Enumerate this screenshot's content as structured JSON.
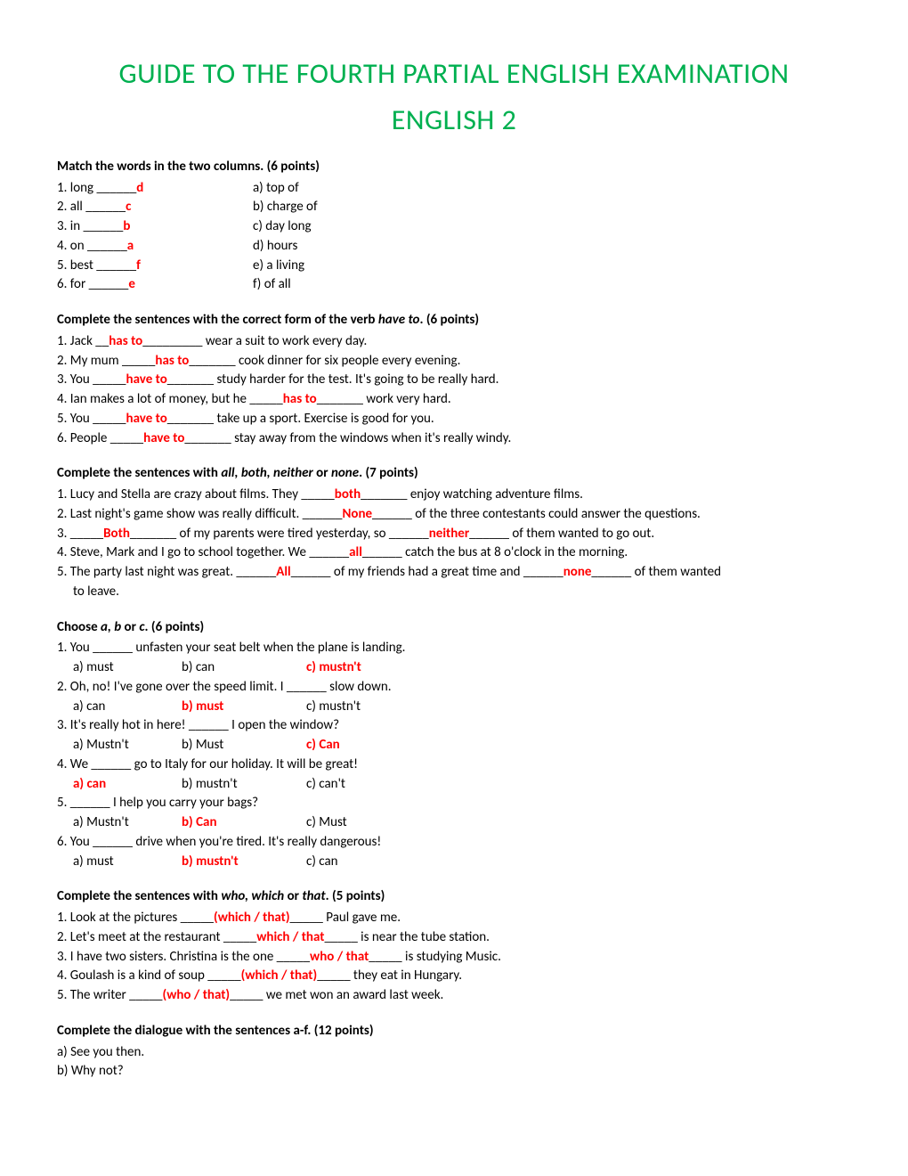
{
  "title_line1": "GUIDE TO THE FOURTH PARTIAL ENGLISH EXAMINATION",
  "title_line2": "ENGLISH 2",
  "colors": {
    "title": "#00b050",
    "answer": "#ff0000",
    "text": "#000000",
    "bg": "#ffffff"
  },
  "sec1": {
    "heading": "Match the words in the two columns. (6 points)",
    "rows": [
      {
        "left_pre": "1. long ______",
        "left_ans": "d",
        "right": "a) top of"
      },
      {
        "left_pre": "2. all ______",
        "left_ans": "c",
        "right": "b) charge of"
      },
      {
        "left_pre": "3. in ______",
        "left_ans": "b",
        "right": "c) day long"
      },
      {
        "left_pre": "4. on ______",
        "left_ans": "a",
        "right": "d) hours"
      },
      {
        "left_pre": "5. best ______",
        "left_ans": "f",
        "right": "e) a living"
      },
      {
        "left_pre": "6. for ______",
        "left_ans": "e",
        "right": "f) of all"
      }
    ]
  },
  "sec2": {
    "heading_pre": "Complete the sentences with the correct form of the verb ",
    "heading_ital": "have to",
    "heading_post": ". (6 points)",
    "items": [
      {
        "pre": "1. Jack __",
        "ans": "has to",
        "post": "_________ wear a suit to work every day."
      },
      {
        "pre": "2. My mum _____",
        "ans": "has to",
        "post": "_______ cook dinner for six people every evening."
      },
      {
        "pre": "3. You _____",
        "ans": "have to",
        "post": "_______ study harder for the test. It's going to be really hard."
      },
      {
        "pre": "4. Ian makes a lot of money, but he _____",
        "ans": "has to",
        "post": "_______ work very hard."
      },
      {
        "pre": "5. You _____",
        "ans": "have to",
        "post": "_______ take up a sport. Exercise is good for you."
      },
      {
        "pre": "6. People _____",
        "ans": "have to",
        "post": "_______ stay away from the windows when it's really windy."
      }
    ]
  },
  "sec3": {
    "heading_pre": "Complete the sentences with ",
    "heading_ital": "all, both, neither",
    "heading_mid": " or ",
    "heading_ital2": "none",
    "heading_post": ". (7 points)",
    "items": [
      {
        "parts": [
          {
            "t": "1. Lucy and Stella are crazy about films. They _____"
          },
          {
            "a": "both"
          },
          {
            "t": "_______ enjoy watching adventure films."
          }
        ]
      },
      {
        "parts": [
          {
            "t": "2. Last night's game show was really difficult. ______"
          },
          {
            "a": "None"
          },
          {
            "t": "______ of the three contestants could answer the questions."
          }
        ]
      },
      {
        "parts": [
          {
            "t": "3. _____"
          },
          {
            "a": "Both"
          },
          {
            "t": "_______ of my parents were tired yesterday, so ______"
          },
          {
            "a": "neither"
          },
          {
            "t": "______ of them wanted to go out."
          }
        ]
      },
      {
        "parts": [
          {
            "t": "4. Steve, Mark and I go to school together. We ______"
          },
          {
            "a": "all"
          },
          {
            "t": "______ catch the bus at 8 o'clock in the morning."
          }
        ]
      },
      {
        "parts": [
          {
            "t": "5. The party last night was great. ______"
          },
          {
            "a": "All"
          },
          {
            "t": "______ of my friends had a great time and ______"
          },
          {
            "a": "none"
          },
          {
            "t": "______ of them wanted"
          }
        ],
        "cont": "to leave."
      }
    ]
  },
  "sec4": {
    "heading_pre": "Choose ",
    "heading_ital": "a, b",
    "heading_mid": " or ",
    "heading_ital2": "c",
    "heading_post": ". (6 points)",
    "items": [
      {
        "q": "1. You ______ unfasten your seat belt when the plane is landing.",
        "a": "a) must",
        "b": "b) can",
        "c": "c) mustn't",
        "correct": "c"
      },
      {
        "q": "2. Oh, no! I've gone over the speed limit. I ______ slow down.",
        "a": "a) can",
        "b": "b) must",
        "c": "c) mustn't",
        "correct": "b"
      },
      {
        "q": "3. It's really hot in here! ______ I open the window?",
        "a": "a) Mustn't",
        "b": "b) Must",
        "c": "c) Can",
        "correct": "c"
      },
      {
        "q": "4. We ______ go to Italy for our holiday. It will be great!",
        "a": "a) can",
        "b": "b) mustn't",
        "c": "c) can't",
        "correct": "a"
      },
      {
        "q": "5. ______ I help you carry your bags?",
        "a": "a) Mustn't",
        "b": "b) Can",
        "c": "c) Must",
        "correct": "b"
      },
      {
        "q": "6. You ______ drive when you're tired. It's really dangerous!",
        "a": "a) must",
        "b": "b) mustn't",
        "c": "c) can",
        "correct": "b"
      }
    ]
  },
  "sec5": {
    "heading_pre": "Complete the sentences with ",
    "heading_ital": "who, which",
    "heading_mid": " or ",
    "heading_ital2": "that",
    "heading_post": ". (5 points)",
    "items": [
      {
        "pre": "1. Look at the pictures _____",
        "ans": "(which / that)",
        "post": "_____ Paul gave me."
      },
      {
        "pre": "2. Let's meet at the restaurant _____",
        "ans": "which / that",
        "post": "_____ is near the tube station."
      },
      {
        "pre": "3. I have two sisters. Christina is the one _____",
        "ans": "who / that",
        "post": "_____ is studying Music."
      },
      {
        "pre": "4. Goulash is a kind of soup _____",
        "ans": "(which / that)",
        "post": "_____ they eat in Hungary."
      },
      {
        "pre": "5. The writer _____",
        "ans": "(who / that)",
        "post": "_____ we met won an award last week."
      }
    ]
  },
  "sec6": {
    "heading": "Complete the dialogue with the sentences a-f. (12 points)",
    "items": [
      "a)  See you then.",
      "b) Why not?"
    ]
  }
}
